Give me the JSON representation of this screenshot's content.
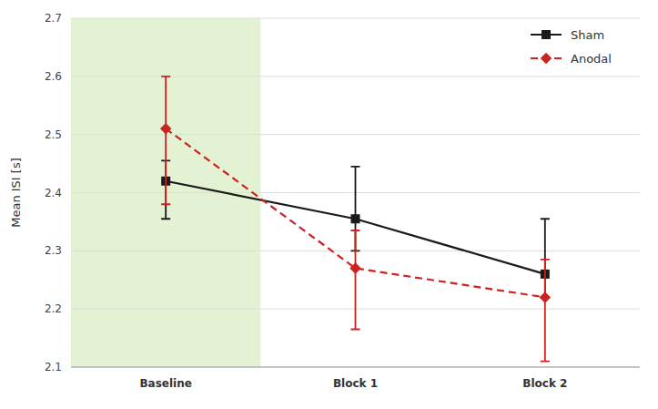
{
  "chart_data": {
    "type": "line",
    "categories": [
      "Baseline",
      "Block 1",
      "Block 2"
    ],
    "y_label": "Mean ISI [s]",
    "ylim": [
      2.1,
      2.7
    ],
    "yticks": [
      2.1,
      2.2,
      2.3,
      2.4,
      2.5,
      2.6,
      2.7
    ],
    "grid": true,
    "legend": "upper right",
    "series": [
      {
        "name": "Sham",
        "color": "#1a1a1a",
        "line_style": "solid",
        "marker": "square",
        "values": [
          2.42,
          2.355,
          2.26
        ],
        "error_lower": [
          0.065,
          0.055,
          0.04
        ],
        "error_upper": [
          0.035,
          0.09,
          0.095
        ]
      },
      {
        "name": "Anodal",
        "color": "#cc2222",
        "line_style": "dashed",
        "marker": "diamond",
        "values": [
          2.51,
          2.27,
          2.22
        ],
        "error_lower": [
          0.13,
          0.105,
          0.11
        ],
        "error_upper": [
          0.09,
          0.065,
          0.065
        ]
      }
    ]
  }
}
